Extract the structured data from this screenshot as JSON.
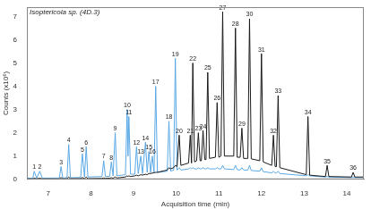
{
  "chart_data": {
    "type": "line",
    "title": "Isoptericola sp. (4D.3)",
    "x_label": "Acquisition time (min)",
    "y_label": "Counts (x10⁶)",
    "xlim": [
      6.5,
      14.4
    ],
    "xticks": [
      7,
      8,
      9,
      10,
      11,
      12,
      13,
      14
    ],
    "ylim": [
      0,
      7.4
    ],
    "yticks": [
      0,
      1,
      2,
      3,
      4,
      5,
      6,
      7
    ],
    "grid": false,
    "x": [
      6.5,
      6.64,
      6.67,
      6.73,
      6.8,
      6.86,
      7.26,
      7.3,
      7.34,
      7.44,
      7.48,
      7.52,
      7.76,
      7.8,
      7.85,
      7.89,
      7.93,
      8.26,
      8.3,
      8.34,
      8.44,
      8.48,
      8.52,
      8.57,
      8.61,
      8.81,
      8.85,
      8.87,
      8.89,
      8.93,
      9.03,
      9.07,
      9.11,
      9.17,
      9.21,
      9.28,
      9.32,
      9.36,
      9.4,
      9.44,
      9.48,
      9.52,
      9.56,
      9.79,
      9.83,
      9.87,
      9.94,
      9.98,
      10.02,
      10.07,
      10.11,
      10.29,
      10.33,
      10.36,
      10.39,
      10.43,
      10.48,
      10.52,
      10.56,
      10.59,
      10.63,
      10.67,
      10.7,
      10.74,
      10.78,
      10.92,
      10.96,
      11.0,
      11.05,
      11.09,
      11.13,
      11.35,
      11.39,
      11.43,
      11.5,
      11.54,
      11.58,
      11.68,
      11.72,
      11.76,
      11.96,
      12.0,
      12.04,
      12.24,
      12.28,
      12.32,
      12.35,
      12.39,
      12.43,
      13.05,
      13.09,
      13.13,
      13.5,
      13.54,
      13.58,
      14.11,
      14.15,
      14.19,
      14.4
    ],
    "series": [
      {
        "color": "#1a1a1a",
        "values": [
          0.02,
          0.02,
          0.05,
          0.02,
          0.05,
          0.02,
          0.02,
          0.08,
          0.02,
          0.03,
          0.1,
          0.03,
          0.03,
          0.08,
          0.03,
          0.1,
          0.03,
          0.04,
          0.06,
          0.04,
          0.05,
          0.07,
          0.05,
          0.1,
          0.06,
          0.1,
          0.15,
          0.12,
          0.15,
          0.12,
          0.15,
          0.18,
          0.15,
          0.2,
          0.18,
          0.22,
          0.2,
          0.25,
          0.25,
          0.27,
          0.28,
          0.3,
          0.3,
          0.4,
          0.5,
          0.45,
          0.5,
          0.6,
          0.55,
          1.9,
          0.6,
          0.7,
          1.9,
          0.7,
          5.0,
          0.75,
          0.8,
          2.0,
          0.8,
          0.8,
          2.1,
          0.85,
          0.85,
          4.6,
          0.9,
          0.95,
          3.3,
          0.95,
          1.0,
          7.2,
          1.0,
          1.0,
          6.5,
          0.95,
          0.95,
          2.2,
          0.9,
          0.9,
          6.9,
          0.88,
          0.8,
          5.4,
          0.75,
          0.6,
          1.9,
          0.55,
          0.55,
          3.6,
          0.5,
          0.2,
          2.7,
          0.18,
          0.12,
          0.6,
          0.12,
          0.1,
          0.3,
          0.1,
          0.1
        ]
      },
      {
        "color": "#5aa9e6",
        "values": [
          0.05,
          0.05,
          0.35,
          0.05,
          0.35,
          0.05,
          0.06,
          0.55,
          0.06,
          0.07,
          1.5,
          0.07,
          0.08,
          1.1,
          0.1,
          1.4,
          0.1,
          0.12,
          0.8,
          0.12,
          0.13,
          0.75,
          0.15,
          2.0,
          0.15,
          0.2,
          3.0,
          1.0,
          2.7,
          0.22,
          0.22,
          1.4,
          0.25,
          1.0,
          0.25,
          1.6,
          0.3,
          1.2,
          0.3,
          1.0,
          0.3,
          4.0,
          0.3,
          0.35,
          2.5,
          0.35,
          0.4,
          5.2,
          0.4,
          0.5,
          0.4,
          0.45,
          0.5,
          0.45,
          0.5,
          0.45,
          0.45,
          0.5,
          0.45,
          0.45,
          0.5,
          0.45,
          0.45,
          0.5,
          0.45,
          0.45,
          0.5,
          0.45,
          0.45,
          0.6,
          0.45,
          0.42,
          0.6,
          0.42,
          0.4,
          0.5,
          0.4,
          0.4,
          0.6,
          0.38,
          0.35,
          0.5,
          0.33,
          0.28,
          0.35,
          0.27,
          0.27,
          0.35,
          0.25,
          0.15,
          0.2,
          0.15,
          0.1,
          0.12,
          0.1,
          0.08,
          0.1,
          0.08,
          0.08
        ]
      }
    ],
    "annotations": [
      {
        "text": "1",
        "x": 6.67,
        "y": 0.35
      },
      {
        "text": "2",
        "x": 6.8,
        "y": 0.35
      },
      {
        "text": "3",
        "x": 7.3,
        "y": 0.55
      },
      {
        "text": "4",
        "x": 7.48,
        "y": 1.5
      },
      {
        "text": "5",
        "x": 7.8,
        "y": 1.1
      },
      {
        "text": "6",
        "x": 7.89,
        "y": 1.4
      },
      {
        "text": "7",
        "x": 8.3,
        "y": 0.8
      },
      {
        "text": "8",
        "x": 8.48,
        "y": 0.75
      },
      {
        "text": "9",
        "x": 8.57,
        "y": 2.0
      },
      {
        "text": "10",
        "x": 8.85,
        "y": 3.0
      },
      {
        "text": "11",
        "x": 8.89,
        "y": 2.7
      },
      {
        "text": "12",
        "x": 9.07,
        "y": 1.4
      },
      {
        "text": "13",
        "x": 9.17,
        "y": 1.0
      },
      {
        "text": "14",
        "x": 9.28,
        "y": 1.6
      },
      {
        "text": "15",
        "x": 9.36,
        "y": 1.2
      },
      {
        "text": "16",
        "x": 9.44,
        "y": 1.0
      },
      {
        "text": "17",
        "x": 9.52,
        "y": 4.0
      },
      {
        "text": "18",
        "x": 9.83,
        "y": 2.5
      },
      {
        "text": "19",
        "x": 9.98,
        "y": 5.2
      },
      {
        "text": "20",
        "x": 10.07,
        "y": 1.9
      },
      {
        "text": "21",
        "x": 10.33,
        "y": 1.9
      },
      {
        "text": "22",
        "x": 10.39,
        "y": 5.0
      },
      {
        "text": "23",
        "x": 10.52,
        "y": 2.0
      },
      {
        "text": "24",
        "x": 10.63,
        "y": 2.1
      },
      {
        "text": "25",
        "x": 10.74,
        "y": 4.6
      },
      {
        "text": "26",
        "x": 10.96,
        "y": 3.3
      },
      {
        "text": "27",
        "x": 11.09,
        "y": 7.2
      },
      {
        "text": "28",
        "x": 11.39,
        "y": 6.5
      },
      {
        "text": "29",
        "x": 11.54,
        "y": 2.2
      },
      {
        "text": "30",
        "x": 11.72,
        "y": 6.9
      },
      {
        "text": "31",
        "x": 12.0,
        "y": 5.4
      },
      {
        "text": "32",
        "x": 12.28,
        "y": 1.9
      },
      {
        "text": "33",
        "x": 12.39,
        "y": 3.6
      },
      {
        "text": "34",
        "x": 13.09,
        "y": 2.7
      },
      {
        "text": "35",
        "x": 13.54,
        "y": 0.6
      },
      {
        "text": "36",
        "x": 14.15,
        "y": 0.3
      }
    ]
  }
}
